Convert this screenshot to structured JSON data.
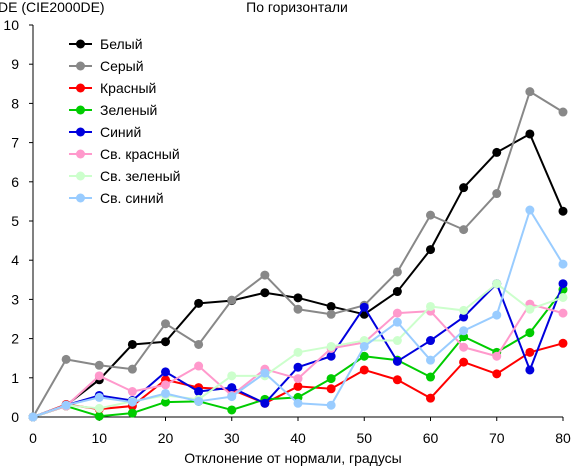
{
  "chart_data": {
    "type": "line",
    "title": "По горизонтали",
    "ylabel": "DE (CIE2000DE)",
    "xlabel": "Отклонение от нормали, градусы",
    "xlim": [
      0,
      80
    ],
    "ylim": [
      0,
      10
    ],
    "xticks": [
      "0",
      "10",
      "20",
      "30",
      "40",
      "50",
      "60",
      "70",
      "80"
    ],
    "yticks": [
      "0",
      "1",
      "2",
      "3",
      "4",
      "5",
      "6",
      "7",
      "8",
      "9",
      "10"
    ],
    "grid": false,
    "legend_position": "top-left",
    "x": [
      0,
      5,
      10,
      15,
      20,
      25,
      30,
      35,
      40,
      45,
      50,
      55,
      60,
      65,
      70,
      75,
      80
    ],
    "series": [
      {
        "name": "Белый",
        "color": "#000000",
        "values": [
          0,
          0.3,
          0.95,
          1.85,
          1.92,
          2.9,
          2.97,
          3.17,
          3.04,
          2.82,
          2.62,
          3.2,
          4.27,
          5.85,
          6.75,
          7.22,
          5.25
        ]
      },
      {
        "name": "Серый",
        "color": "#888888",
        "values": [
          0,
          1.47,
          1.32,
          1.22,
          2.38,
          1.85,
          2.98,
          3.62,
          2.75,
          2.62,
          2.85,
          3.7,
          5.15,
          4.78,
          5.7,
          8.3,
          7.78
        ]
      },
      {
        "name": "Красный",
        "color": "#ff0000",
        "values": [
          0,
          0.32,
          0.2,
          0.28,
          0.95,
          0.75,
          0.7,
          0.35,
          0.78,
          0.72,
          1.2,
          0.95,
          0.48,
          1.4,
          1.1,
          1.65,
          1.88
        ]
      },
      {
        "name": "Зеленый",
        "color": "#00cc00",
        "values": [
          0,
          0.28,
          0.02,
          0.1,
          0.38,
          0.4,
          0.18,
          0.45,
          0.5,
          0.98,
          1.55,
          1.45,
          1.02,
          2.05,
          1.65,
          2.15,
          3.25
        ]
      },
      {
        "name": "Синий",
        "color": "#0000dd",
        "values": [
          0,
          0.3,
          0.55,
          0.42,
          1.15,
          0.65,
          0.75,
          0.35,
          1.27,
          1.55,
          2.8,
          1.42,
          1.95,
          2.55,
          3.4,
          1.2,
          3.4
        ]
      },
      {
        "name": "Св. красный",
        "color": "#ff99cc",
        "values": [
          0,
          0.28,
          1.05,
          0.65,
          0.82,
          1.3,
          0.55,
          1.22,
          0.98,
          1.75,
          1.9,
          2.65,
          2.7,
          1.78,
          1.55,
          2.88,
          2.65
        ]
      },
      {
        "name": "Св. зеленый",
        "color": "#ccffcc",
        "values": [
          0,
          0.3,
          0.22,
          0.4,
          0.55,
          0.45,
          1.05,
          1.05,
          1.65,
          1.8,
          1.95,
          1.95,
          2.82,
          2.72,
          3.4,
          2.75,
          3.05
        ]
      },
      {
        "name": "Св. синий",
        "color": "#99ccff",
        "values": [
          0,
          0.3,
          0.5,
          0.38,
          0.6,
          0.4,
          0.52,
          1.12,
          0.35,
          0.3,
          1.8,
          2.42,
          1.45,
          2.2,
          2.6,
          5.28,
          3.9
        ]
      }
    ]
  }
}
